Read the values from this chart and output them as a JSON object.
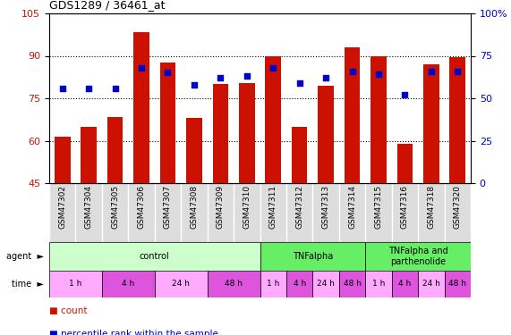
{
  "title": "GDS1289 / 36461_at",
  "samples": [
    "GSM47302",
    "GSM47304",
    "GSM47305",
    "GSM47306",
    "GSM47307",
    "GSM47308",
    "GSM47309",
    "GSM47310",
    "GSM47311",
    "GSM47312",
    "GSM47313",
    "GSM47314",
    "GSM47315",
    "GSM47316",
    "GSM47318",
    "GSM47320"
  ],
  "counts": [
    61.5,
    65.0,
    68.5,
    98.5,
    87.5,
    68.0,
    80.0,
    80.5,
    90.0,
    65.0,
    79.5,
    93.0,
    90.0,
    59.0,
    87.0,
    89.5
  ],
  "percentiles": [
    56,
    56,
    56,
    68,
    65,
    58,
    62,
    63,
    68,
    59,
    62,
    66,
    64,
    52,
    66,
    66
  ],
  "ylim_left": [
    45,
    105
  ],
  "ylim_right": [
    0,
    100
  ],
  "yticks_left": [
    45,
    60,
    75,
    90,
    105
  ],
  "yticks_right": [
    0,
    25,
    50,
    75,
    100
  ],
  "bar_color": "#cc1100",
  "dot_color": "#0000cc",
  "agent_groups": [
    {
      "label": "control",
      "start": 0,
      "end": 8,
      "color": "#ccffcc"
    },
    {
      "label": "TNFalpha",
      "start": 8,
      "end": 12,
      "color": "#66ee66"
    },
    {
      "label": "TNFalpha and\nparthenolide",
      "start": 12,
      "end": 16,
      "color": "#66ee66"
    }
  ],
  "time_groups": [
    {
      "label": "1 h",
      "start": 0,
      "end": 2,
      "color": "#ffaaff"
    },
    {
      "label": "4 h",
      "start": 2,
      "end": 4,
      "color": "#dd55dd"
    },
    {
      "label": "24 h",
      "start": 4,
      "end": 6,
      "color": "#ffaaff"
    },
    {
      "label": "48 h",
      "start": 6,
      "end": 8,
      "color": "#dd55dd"
    },
    {
      "label": "1 h",
      "start": 8,
      "end": 9,
      "color": "#ffaaff"
    },
    {
      "label": "4 h",
      "start": 9,
      "end": 10,
      "color": "#dd55dd"
    },
    {
      "label": "24 h",
      "start": 10,
      "end": 11,
      "color": "#ffaaff"
    },
    {
      "label": "48 h",
      "start": 11,
      "end": 12,
      "color": "#dd55dd"
    },
    {
      "label": "1 h",
      "start": 12,
      "end": 13,
      "color": "#ffaaff"
    },
    {
      "label": "4 h",
      "start": 13,
      "end": 14,
      "color": "#dd55dd"
    },
    {
      "label": "24 h",
      "start": 14,
      "end": 15,
      "color": "#ffaaff"
    },
    {
      "label": "48 h",
      "start": 15,
      "end": 16,
      "color": "#dd55dd"
    }
  ],
  "legend_count_color": "#cc1100",
  "legend_pct_color": "#0000cc",
  "tick_label_color_left": "#cc1100",
  "tick_label_color_right": "#0000cc",
  "fig_width": 5.71,
  "fig_height": 3.75,
  "dpi": 100
}
